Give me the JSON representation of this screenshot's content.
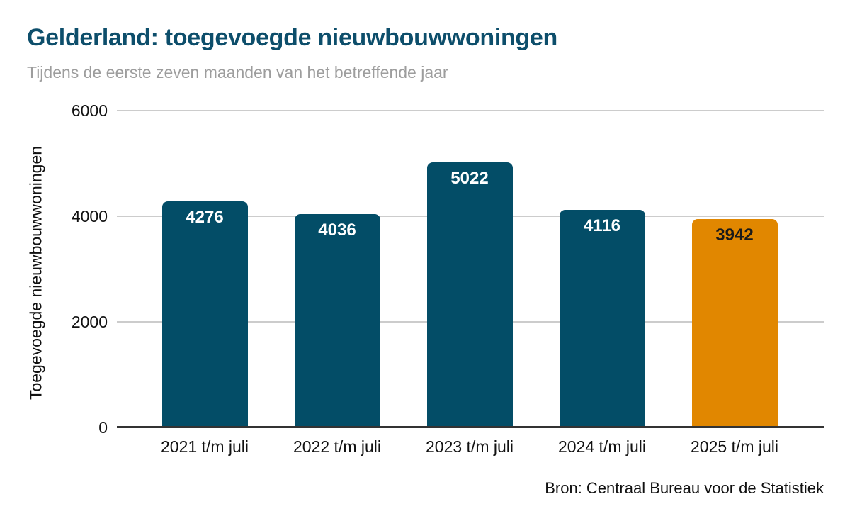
{
  "header": {
    "title": "Gelderland: toegevoegde nieuwbouwwoningen",
    "subtitle": "Tijdens de eerste zeven maanden van het betreffende jaar"
  },
  "footer": {
    "source": "Bron: Centraal Bureau voor de Statistiek"
  },
  "chart_data": {
    "type": "bar",
    "title": "Gelderland: toegevoegde nieuwbouwwoningen",
    "subtitle": "Tijdens de eerste zeven maanden van het betreffende jaar",
    "categories": [
      "2021 t/m juli",
      "2022 t/m juli",
      "2023 t/m juli",
      "2024 t/m juli",
      "2025 t/m juli"
    ],
    "values": [
      4276,
      4036,
      5022,
      4116,
      3942
    ],
    "bar_colors": [
      "#034d67",
      "#034d67",
      "#034d67",
      "#034d67",
      "#e18700"
    ],
    "value_label_colors": [
      "#ffffff",
      "#ffffff",
      "#ffffff",
      "#ffffff",
      "#1a1a1a"
    ],
    "xlabel": "",
    "ylabel": "Toegevoegde nieuwbouwwoningen",
    "ylim": [
      0,
      6000
    ],
    "yticks": [
      0,
      2000,
      4000,
      6000
    ],
    "grid": true,
    "legend": false,
    "gridline_color": "#cccccc",
    "axis_line_color": "#333333",
    "title_color": "#0d4e6b",
    "subtitle_color": "#9d9d9d",
    "source": "Bron: Centraal Bureau voor de Statistiek"
  }
}
